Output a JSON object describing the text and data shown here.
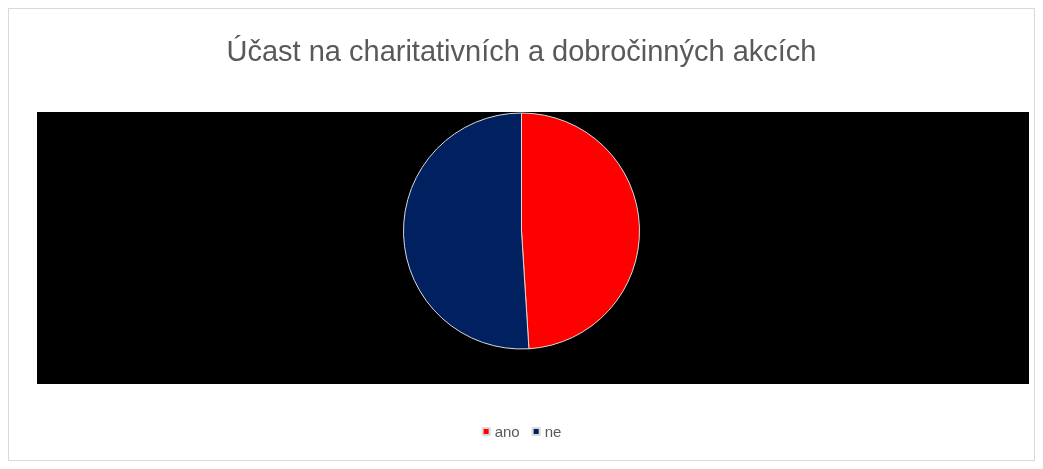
{
  "chart_data": {
    "type": "pie",
    "title": "Účast na charitativních a dobročinných akcích",
    "categories": [
      "ano",
      "ne"
    ],
    "values": [
      49,
      51
    ],
    "colors": [
      "#ff0000",
      "#002060"
    ],
    "legend": "bottom"
  }
}
